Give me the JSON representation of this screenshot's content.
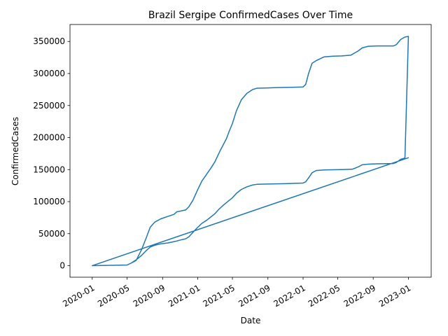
{
  "chart_data": {
    "type": "line",
    "title": "Brazil Sergipe ConfirmedCases Over Time",
    "xlabel": "Date",
    "ylabel": "ConfirmedCases",
    "x_ticks": [
      "2020-01",
      "2020-05",
      "2020-09",
      "2021-01",
      "2021-05",
      "2021-09",
      "2022-01",
      "2022-05",
      "2022-09",
      "2023-01"
    ],
    "y_ticks": [
      "0",
      "50000",
      "100000",
      "150000",
      "200000",
      "250000",
      "300000",
      "350000"
    ],
    "xlim": [
      "2019-10-16",
      "2023-03-21"
    ],
    "ylim": [
      -18000,
      376500
    ],
    "grid": false,
    "color": "#1f77b4",
    "series": [
      {
        "points": [
          [
            "2020-01-01",
            0
          ],
          [
            "2020-05-01",
            1000
          ],
          [
            "2020-05-15",
            4000
          ],
          [
            "2020-06-01",
            8000
          ],
          [
            "2020-06-20",
            25000
          ],
          [
            "2020-07-05",
            42000
          ],
          [
            "2020-07-20",
            60000
          ],
          [
            "2020-08-05",
            68000
          ],
          [
            "2020-08-25",
            73000
          ],
          [
            "2020-09-20",
            77000
          ],
          [
            "2020-10-10",
            80000
          ],
          [
            "2020-10-20",
            84000
          ],
          [
            "2020-11-20",
            87000
          ],
          [
            "2020-12-01",
            92000
          ],
          [
            "2020-12-15",
            102000
          ],
          [
            "2020-12-31",
            118000
          ],
          [
            "2021-01-15",
            132000
          ],
          [
            "2021-02-01",
            143000
          ],
          [
            "2021-02-15",
            152000
          ],
          [
            "2021-03-01",
            162000
          ],
          [
            "2021-03-20",
            180000
          ],
          [
            "2021-04-10",
            198000
          ],
          [
            "2021-04-20",
            210000
          ],
          [
            "2021-05-01",
            222000
          ],
          [
            "2021-05-15",
            242000
          ],
          [
            "2021-06-01",
            259000
          ],
          [
            "2021-06-20",
            269000
          ],
          [
            "2021-07-10",
            275000
          ],
          [
            "2021-07-25",
            277000
          ],
          [
            "2021-09-01",
            277500
          ],
          [
            "2021-10-01",
            278000
          ],
          [
            "2021-11-01",
            278300
          ],
          [
            "2021-12-01",
            278500
          ],
          [
            "2022-01-01",
            279000
          ],
          [
            "2022-01-10",
            283000
          ],
          [
            "2022-01-20",
            300000
          ],
          [
            "2022-02-01",
            316000
          ],
          [
            "2022-02-15",
            320000
          ],
          [
            "2022-03-15",
            326000
          ],
          [
            "2022-04-15",
            327000
          ],
          [
            "2022-05-15",
            327500
          ],
          [
            "2022-06-15",
            328500
          ],
          [
            "2022-07-10",
            335000
          ],
          [
            "2022-07-25",
            340000
          ],
          [
            "2022-08-15",
            342500
          ],
          [
            "2022-09-15",
            343000
          ],
          [
            "2022-11-10",
            343000
          ],
          [
            "2022-11-20",
            345000
          ],
          [
            "2022-12-05",
            353000
          ],
          [
            "2022-12-20",
            357000
          ],
          [
            "2023-01-01",
            358000
          ],
          [
            "2022-12-20",
            168000
          ],
          [
            "2022-12-05",
            166000
          ],
          [
            "2022-11-20",
            161000
          ],
          [
            "2022-11-10",
            159500
          ],
          [
            "2022-09-15",
            159000
          ],
          [
            "2022-08-15",
            158500
          ],
          [
            "2022-07-25",
            157500
          ],
          [
            "2022-07-10",
            154000
          ],
          [
            "2022-06-20",
            150500
          ],
          [
            "2022-05-15",
            150000
          ],
          [
            "2022-03-15",
            149500
          ],
          [
            "2022-02-15",
            148500
          ],
          [
            "2022-02-01",
            145000
          ],
          [
            "2022-01-20",
            137000
          ],
          [
            "2022-01-10",
            131000
          ],
          [
            "2022-01-01",
            129000
          ],
          [
            "2021-11-01",
            128000
          ],
          [
            "2021-09-01",
            127500
          ],
          [
            "2021-07-25",
            127000
          ],
          [
            "2021-07-10",
            126000
          ],
          [
            "2021-06-20",
            123000
          ],
          [
            "2021-06-01",
            119000
          ],
          [
            "2021-05-15",
            113000
          ],
          [
            "2021-05-01",
            106000
          ],
          [
            "2021-04-20",
            102000
          ],
          [
            "2021-04-01",
            95000
          ],
          [
            "2021-03-15",
            88000
          ],
          [
            "2021-03-01",
            81000
          ],
          [
            "2021-02-15",
            76000
          ],
          [
            "2021-02-01",
            71000
          ],
          [
            "2021-01-15",
            66000
          ],
          [
            "2021-01-01",
            60000
          ],
          [
            "2020-12-15",
            52000
          ],
          [
            "2020-12-01",
            45000
          ],
          [
            "2020-11-20",
            42000
          ],
          [
            "2020-11-01",
            40000
          ],
          [
            "2020-10-20",
            38500
          ],
          [
            "2020-10-10",
            37500
          ],
          [
            "2020-09-20",
            35500
          ],
          [
            "2020-08-25",
            34000
          ],
          [
            "2020-08-05",
            32000
          ],
          [
            "2020-07-20",
            29000
          ],
          [
            "2020-07-05",
            23000
          ],
          [
            "2020-06-20",
            16000
          ],
          [
            "2020-06-01",
            9000
          ],
          [
            "2020-05-15",
            4000
          ],
          [
            "2020-05-01",
            1000
          ],
          [
            "2020-01-01",
            0
          ],
          [
            "2023-01-01",
            168500
          ]
        ]
      }
    ]
  }
}
